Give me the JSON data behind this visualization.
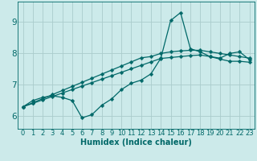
{
  "xlabel": "Humidex (Indice chaleur)",
  "bg_color": "#cceaea",
  "grid_color": "#aacccc",
  "line_color": "#006868",
  "xlim": [
    -0.5,
    23.5
  ],
  "ylim": [
    5.6,
    9.65
  ],
  "xticks": [
    0,
    1,
    2,
    3,
    4,
    5,
    6,
    7,
    8,
    9,
    10,
    11,
    12,
    13,
    14,
    15,
    16,
    17,
    18,
    19,
    20,
    21,
    22,
    23
  ],
  "yticks": [
    6,
    7,
    8,
    9
  ],
  "line1_y": [
    6.3,
    6.5,
    6.6,
    6.65,
    6.6,
    6.5,
    5.95,
    6.05,
    6.35,
    6.55,
    6.85,
    7.05,
    7.15,
    7.35,
    7.85,
    9.05,
    9.3,
    8.15,
    8.05,
    7.9,
    7.85,
    8.0,
    8.05,
    7.8
  ],
  "line2_y": [
    6.3,
    6.43,
    6.56,
    6.69,
    6.82,
    6.95,
    7.08,
    7.21,
    7.34,
    7.47,
    7.6,
    7.73,
    7.86,
    7.9,
    8.0,
    8.05,
    8.08,
    8.1,
    8.1,
    8.05,
    8.0,
    7.95,
    7.9,
    7.85
  ],
  "line3_y": [
    6.3,
    6.41,
    6.52,
    6.63,
    6.74,
    6.85,
    6.96,
    7.07,
    7.18,
    7.29,
    7.4,
    7.51,
    7.62,
    7.73,
    7.84,
    7.87,
    7.9,
    7.93,
    7.95,
    7.9,
    7.82,
    7.75,
    7.75,
    7.72
  ],
  "marker_size": 2.5,
  "line_width": 0.9,
  "tick_fontsize": 6.0,
  "xlabel_fontsize": 7.0
}
